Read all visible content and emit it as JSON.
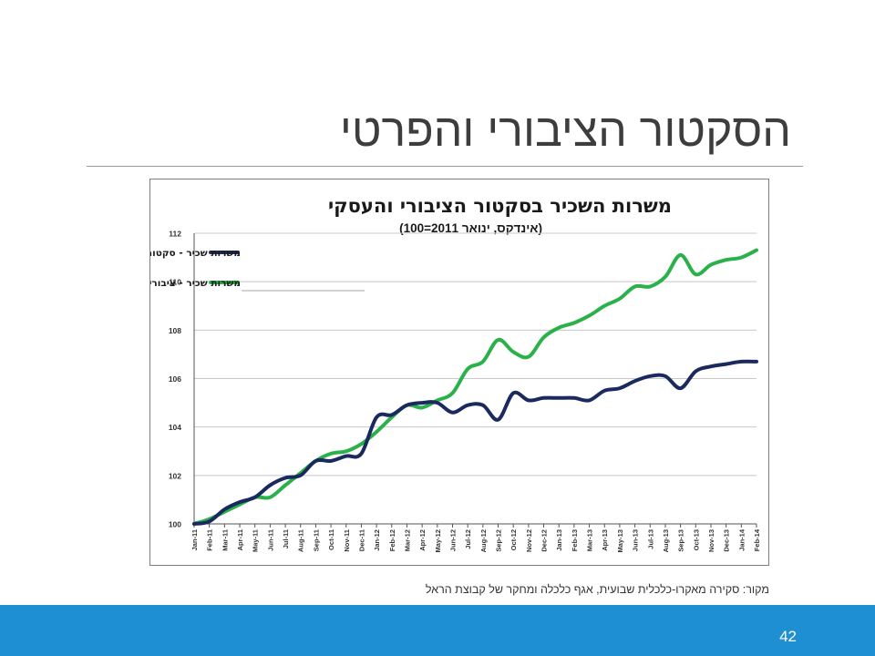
{
  "slide": {
    "title": "הסקטור הציבורי והפרטי",
    "source_note": "מקור: סקירה מאקרו-כלכלית שבועית, אגף כלכלה ומחקר של קבוצת הראל",
    "page_number": "42"
  },
  "colors": {
    "series_business": "#1b2a5e",
    "series_public": "#2bb14a",
    "footer_bar": "#1f8fd3",
    "grid": "#c8c8c8"
  },
  "chart_data": {
    "type": "line",
    "title": "משרות השכיר בסקטור הציבורי והעסקי",
    "subtitle": "(אינדקס, ינואר 2011=100)",
    "xlabel": "",
    "ylabel": "",
    "ylim": [
      100,
      112
    ],
    "y_ticks": [
      "100",
      "102",
      "104",
      "106",
      "108",
      "110",
      "112"
    ],
    "grid": true,
    "legend_position": "top-left",
    "x": [
      "Jan-11",
      "Feb-11",
      "Mar-11",
      "Apr-11",
      "May-11",
      "Jun-11",
      "Jul-11",
      "Aug-11",
      "Sep-11",
      "Oct-11",
      "Nov-11",
      "Dec-11",
      "Jan-12",
      "Feb-12",
      "Mar-12",
      "Apr-12",
      "May-12",
      "Jun-12",
      "Jul-12",
      "Aug-12",
      "Sep-12",
      "Oct-12",
      "Nov-12",
      "Dec-12",
      "Jan-13",
      "Feb-13",
      "Mar-13",
      "Apr-13",
      "May-13",
      "Jun-13",
      "Jul-13",
      "Aug-13",
      "Sep-13",
      "Oct-13",
      "Nov-13",
      "Dec-13",
      "Jan-14",
      "Feb-14"
    ],
    "series": [
      {
        "name": "משרות שכיר - סקטור עסקי",
        "color": "#1b2a5e",
        "values": [
          100.0,
          100.1,
          100.6,
          100.9,
          101.1,
          101.6,
          101.9,
          102.0,
          102.6,
          102.6,
          102.8,
          102.9,
          104.4,
          104.5,
          104.9,
          105.0,
          105.0,
          104.6,
          104.9,
          104.9,
          104.3,
          105.4,
          105.1,
          105.2,
          105.2,
          105.2,
          105.1,
          105.5,
          105.6,
          105.9,
          106.1,
          106.1,
          105.6,
          106.3,
          106.5,
          106.6,
          106.7,
          106.7
        ]
      },
      {
        "name": "משרות שכיר - ציבורי",
        "color": "#2bb14a",
        "values": [
          100.0,
          100.2,
          100.5,
          100.8,
          101.1,
          101.1,
          101.6,
          102.1,
          102.6,
          102.9,
          103.0,
          103.3,
          103.8,
          104.4,
          104.9,
          104.8,
          105.1,
          105.4,
          106.4,
          106.7,
          107.6,
          107.1,
          106.9,
          107.7,
          108.1,
          108.3,
          108.6,
          109.0,
          109.3,
          109.8,
          109.8,
          110.2,
          111.1,
          110.3,
          110.7,
          110.9,
          111.0,
          111.3
        ]
      }
    ]
  }
}
